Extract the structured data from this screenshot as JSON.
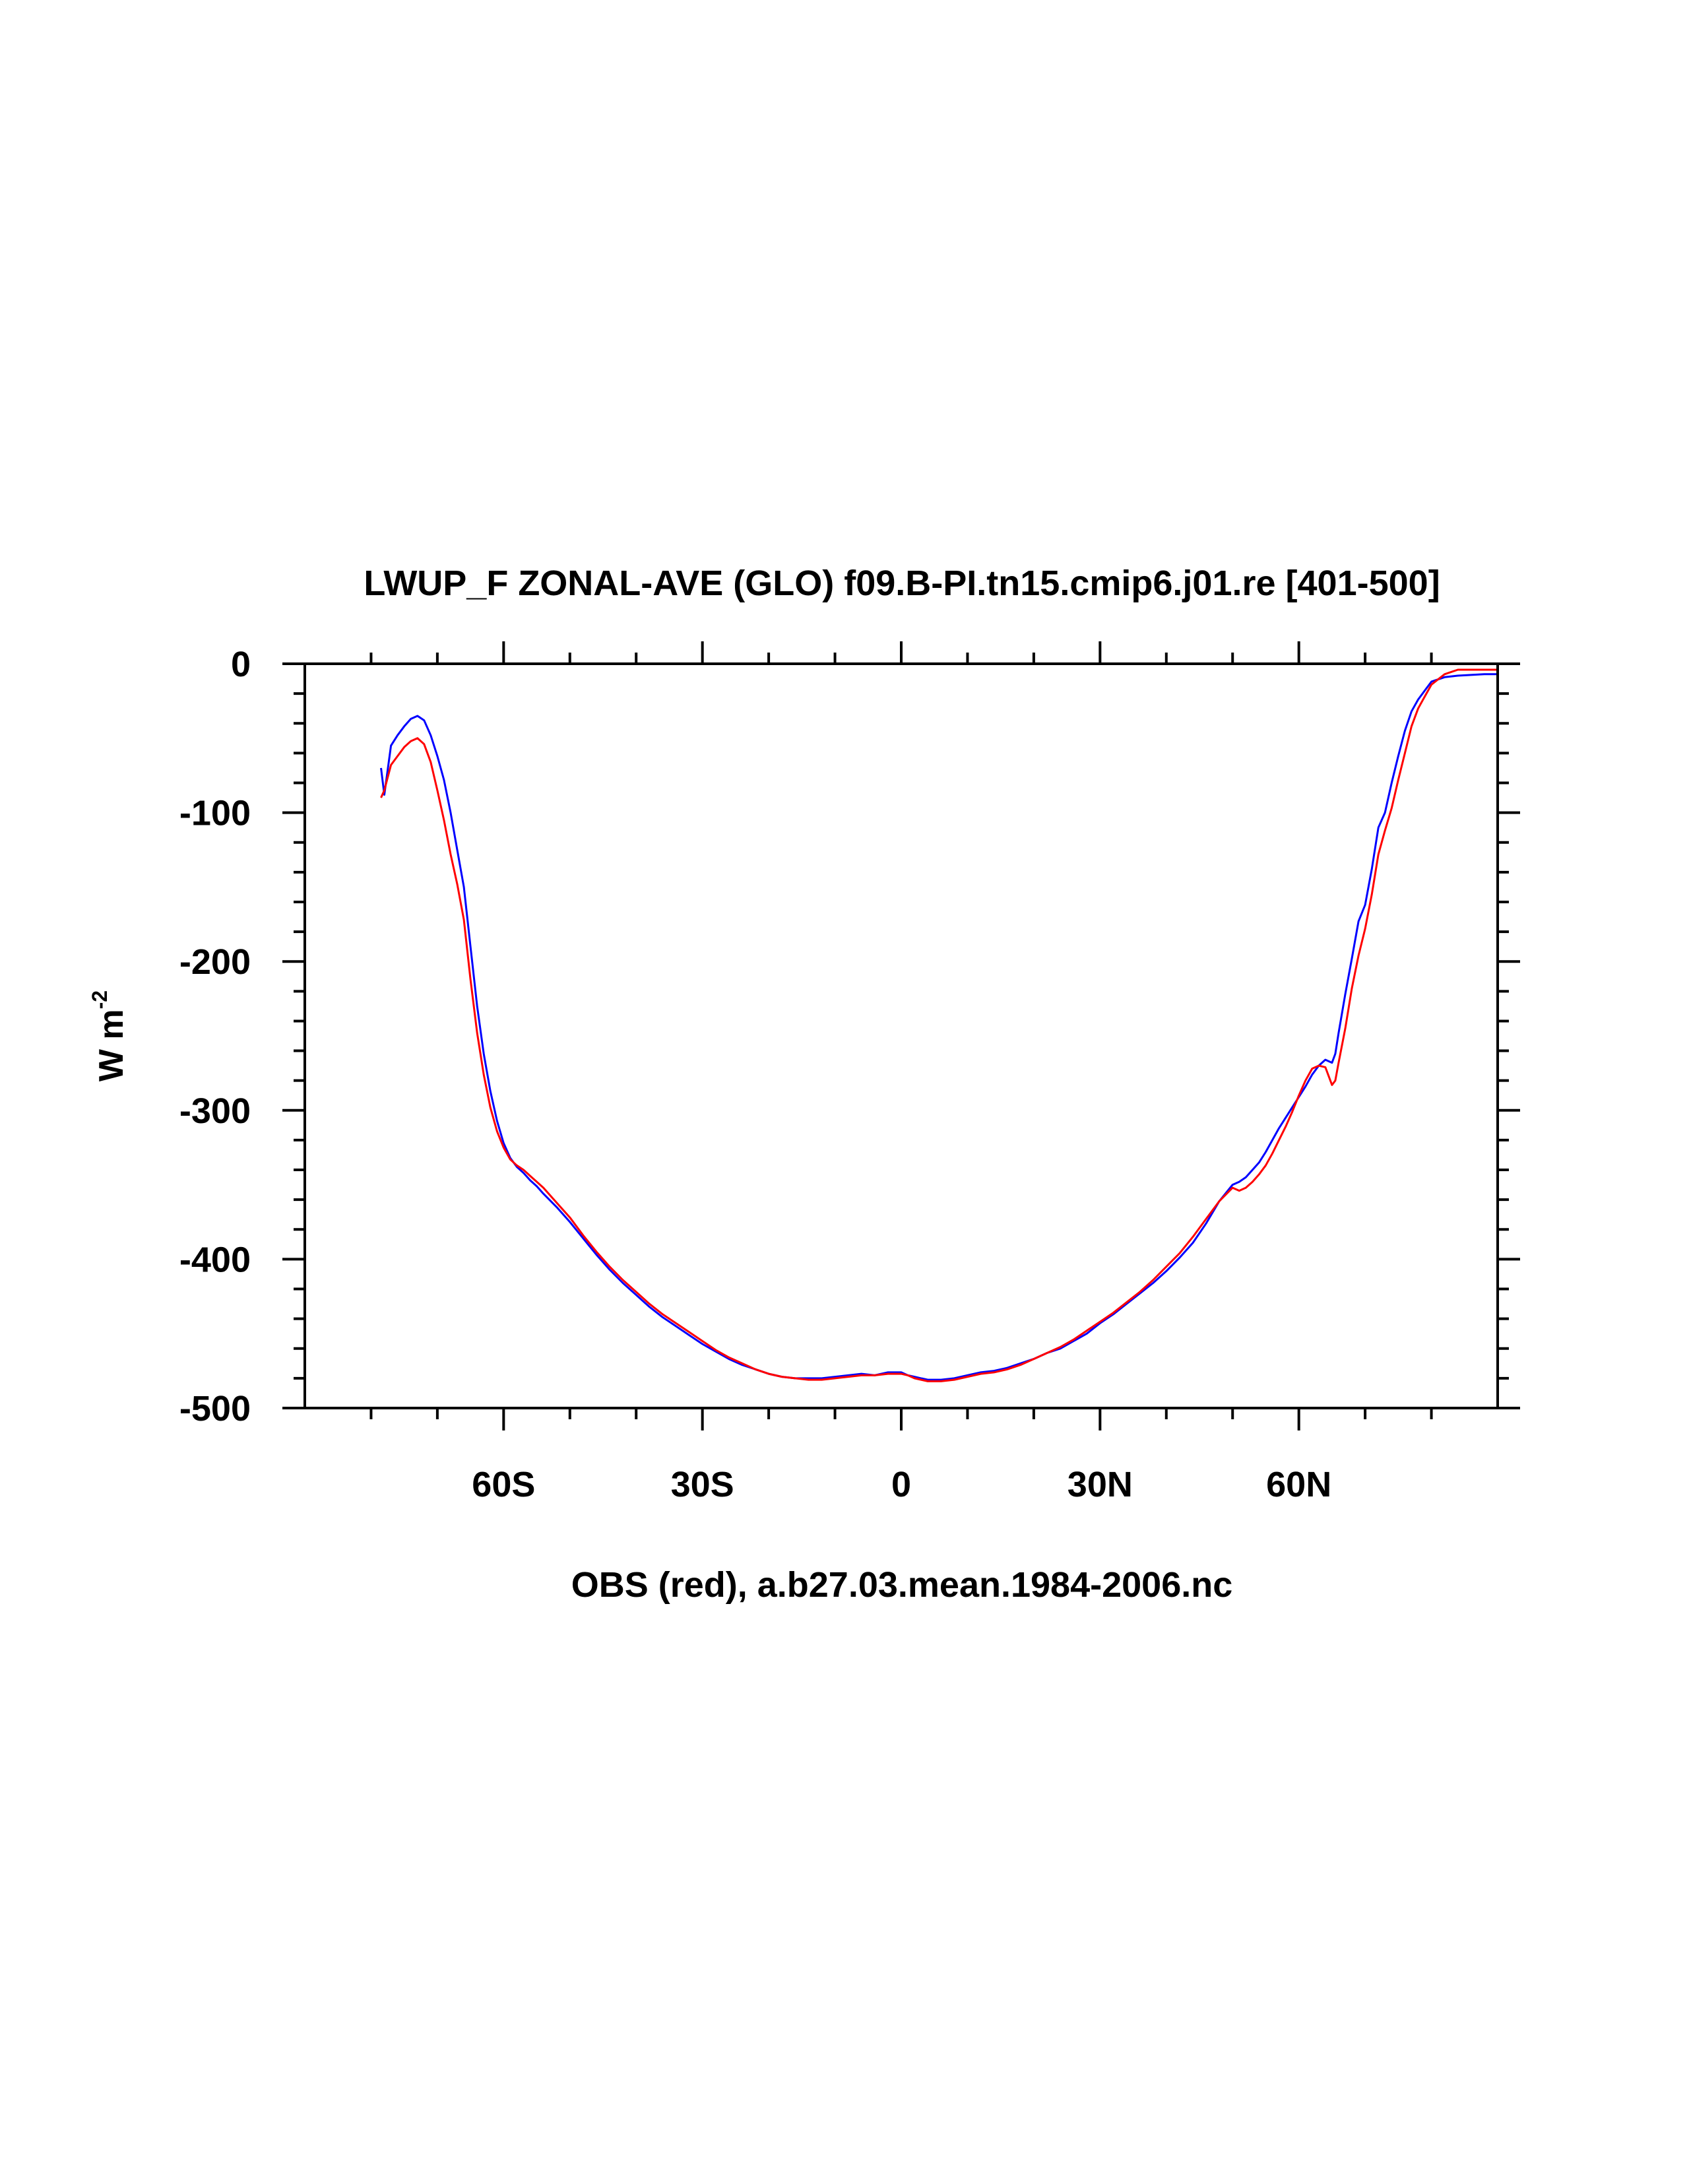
{
  "chart_data": {
    "type": "line",
    "title": "LWUP_F ZONAL-AVE (GLO) f09.B-PI.tn15.cmip6.j01.re [401-500]",
    "xlabel": "OBS (red), a.b27.03.mean.1984-2006.nc",
    "ylabel_base": "W m",
    "ylabel_exponent": "-2",
    "xlim": [
      -90,
      90
    ],
    "ylim": [
      -500,
      0
    ],
    "x_ticks": [
      {
        "value": -60,
        "label": "60S"
      },
      {
        "value": -30,
        "label": "30S"
      },
      {
        "value": 0,
        "label": "0"
      },
      {
        "value": 30,
        "label": "30N"
      },
      {
        "value": 60,
        "label": "60N"
      }
    ],
    "y_ticks": [
      {
        "value": 0,
        "label": "0"
      },
      {
        "value": -100,
        "label": "-100"
      },
      {
        "value": -200,
        "label": "-200"
      },
      {
        "value": -300,
        "label": "-300"
      },
      {
        "value": -400,
        "label": "-400"
      },
      {
        "value": -500,
        "label": "-500"
      }
    ],
    "grid": false,
    "series": [
      {
        "color": "#0000ff",
        "x": [
          -78.5,
          -78,
          -77,
          -76,
          -75,
          -74,
          -73,
          -72,
          -71,
          -70,
          -69,
          -68,
          -67,
          -66,
          -65,
          -64,
          -63,
          -62,
          -61,
          -60,
          -59,
          -58,
          -57,
          -56,
          -55,
          -54,
          -52,
          -50,
          -48,
          -46,
          -44,
          -42,
          -40,
          -38,
          -36,
          -34,
          -32,
          -30,
          -28,
          -26,
          -24,
          -22,
          -20,
          -18,
          -16,
          -14,
          -12,
          -10,
          -8,
          -6,
          -4,
          -2,
          -1,
          0,
          1,
          2,
          3,
          4,
          6,
          8,
          10,
          12,
          14,
          16,
          18,
          20,
          22,
          24,
          26,
          28,
          30,
          32,
          34,
          36,
          38,
          40,
          42,
          44,
          46,
          48,
          50,
          51,
          52,
          53,
          54,
          55,
          56,
          57,
          58,
          59,
          60,
          61,
          62,
          63,
          64,
          65,
          65.5,
          66,
          67,
          68,
          69,
          70,
          71,
          72,
          73,
          74,
          75,
          76,
          77,
          78,
          79,
          80,
          82,
          84,
          86,
          88,
          90
        ],
        "y": [
          -70,
          -88,
          -55,
          -48,
          -42,
          -37,
          -35,
          -38,
          -48,
          -62,
          -78,
          -100,
          -125,
          -150,
          -190,
          -230,
          -262,
          -287,
          -307,
          -322,
          -332,
          -338,
          -342,
          -347,
          -351,
          -356,
          -365,
          -375,
          -386,
          -397,
          -407,
          -416,
          -424,
          -432,
          -439,
          -445,
          -451,
          -457,
          -462,
          -467,
          -471,
          -474,
          -477,
          -479,
          -480,
          -480,
          -480,
          -479,
          -478,
          -477,
          -478,
          -476,
          -476,
          -476,
          -478,
          -479,
          -480,
          -481,
          -481,
          -480,
          -478,
          -476,
          -475,
          -473,
          -470,
          -467,
          -463,
          -460,
          -455,
          -450,
          -443,
          -437,
          -430,
          -423,
          -416,
          -408,
          -399,
          -389,
          -376,
          -361,
          -350,
          -348,
          -345,
          -340,
          -335,
          -328,
          -320,
          -312,
          -305,
          -298,
          -291,
          -284,
          -276,
          -270,
          -266,
          -268,
          -262,
          -248,
          -222,
          -198,
          -173,
          -162,
          -138,
          -110,
          -100,
          -80,
          -62,
          -45,
          -32,
          -24,
          -18,
          -12,
          -9,
          -8,
          -7.5,
          -7,
          -7
        ]
      },
      {
        "color": "#ff0000",
        "x": [
          -78.5,
          -78,
          -77,
          -76,
          -75,
          -74,
          -73,
          -72,
          -71,
          -70,
          -69,
          -68,
          -67,
          -66,
          -65,
          -64,
          -63,
          -62,
          -61,
          -60,
          -59,
          -58,
          -57,
          -56,
          -55,
          -54,
          -52,
          -50,
          -48,
          -46,
          -44,
          -42,
          -40,
          -38,
          -36,
          -34,
          -32,
          -30,
          -28,
          -26,
          -24,
          -22,
          -20,
          -18,
          -16,
          -14,
          -12,
          -10,
          -8,
          -6,
          -4,
          -2,
          -1,
          0,
          1,
          2,
          3,
          4,
          6,
          8,
          10,
          12,
          14,
          16,
          18,
          20,
          22,
          24,
          26,
          28,
          30,
          32,
          34,
          36,
          38,
          40,
          42,
          44,
          46,
          48,
          50,
          51,
          52,
          53,
          54,
          55,
          56,
          57,
          58,
          59,
          60,
          61,
          62,
          63,
          64,
          65,
          65.5,
          66,
          67,
          68,
          69,
          70,
          71,
          72,
          73,
          74,
          75,
          76,
          77,
          78,
          79,
          80,
          82,
          84,
          86,
          88,
          90
        ],
        "y": [
          -90,
          -85,
          -68,
          -62,
          -56,
          -52,
          -50,
          -54,
          -66,
          -85,
          -105,
          -128,
          -148,
          -172,
          -212,
          -248,
          -276,
          -298,
          -314,
          -325,
          -333,
          -337,
          -340,
          -344,
          -348,
          -352,
          -362,
          -372,
          -384,
          -395,
          -405,
          -414,
          -422,
          -430,
          -437,
          -443,
          -449,
          -455,
          -461,
          -466,
          -470,
          -474,
          -477,
          -479,
          -480,
          -481,
          -481,
          -480,
          -479,
          -478,
          -478,
          -477,
          -477,
          -477,
          -478,
          -480,
          -481,
          -482,
          -482,
          -481,
          -479,
          -477,
          -476,
          -474,
          -471,
          -467,
          -463,
          -459,
          -454,
          -448,
          -442,
          -436,
          -429,
          -422,
          -414,
          -405,
          -396,
          -385,
          -373,
          -361,
          -352,
          -354,
          -352,
          -348,
          -343,
          -337,
          -329,
          -320,
          -311,
          -301,
          -290,
          -280,
          -272,
          -270,
          -271,
          -283,
          -280,
          -268,
          -245,
          -218,
          -196,
          -178,
          -155,
          -128,
          -112,
          -97,
          -78,
          -60,
          -42,
          -30,
          -22,
          -14,
          -7,
          -4,
          -4,
          -4,
          -4
        ]
      }
    ]
  }
}
